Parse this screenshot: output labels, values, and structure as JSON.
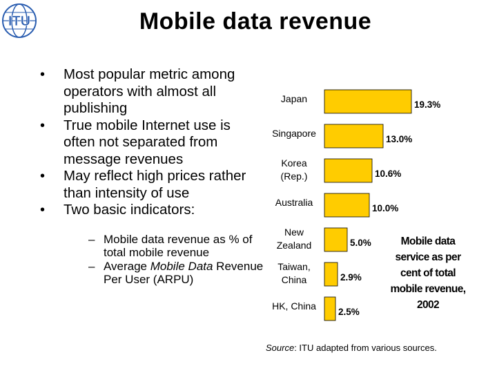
{
  "slide": {
    "logo_text": "ITU",
    "title": "Mobile data revenue"
  },
  "bullets": [
    {
      "text": "Most popular metric among operators with almost all publishing"
    },
    {
      "text": "True mobile Internet use is often not separated from message revenues"
    },
    {
      "text": "May reflect high prices rather than intensity of use"
    },
    {
      "text": "Two basic indicators:"
    }
  ],
  "sub_bullets": [
    {
      "text": "Mobile data revenue as % of total mobile revenue"
    },
    {
      "prefix": "Average ",
      "italic": "Mobile Data",
      "suffix": " Revenue Per User (ARPU)"
    }
  ],
  "chart_data": {
    "type": "bar",
    "orientation": "horizontal",
    "categories": [
      "Japan",
      "Singapore",
      "Korea (Rep.)",
      "Australia",
      "New Zealand",
      "Taiwan, China",
      "HK, China"
    ],
    "category_lines": [
      [
        "Japan"
      ],
      [
        "Singapore"
      ],
      [
        "Korea",
        "(Rep.)"
      ],
      [
        "Australia"
      ],
      [
        "New",
        "Zealand"
      ],
      [
        "Taiwan,",
        "China"
      ],
      [
        "HK, China"
      ]
    ],
    "values": [
      19.3,
      13.0,
      10.6,
      10.0,
      5.0,
      2.9,
      2.5
    ],
    "value_labels": [
      "19.3%",
      "13.0%",
      "10.6%",
      "10.0%",
      "5.0%",
      "2.9%",
      "2.5%"
    ],
    "xlim": [
      0,
      19.3
    ],
    "bar_color": "#FFCC00",
    "annotation": "Mobile data service as per cent of total mobile revenue, 2002"
  },
  "source": {
    "label": "Source",
    "text": ": ITU adapted from various sources."
  }
}
